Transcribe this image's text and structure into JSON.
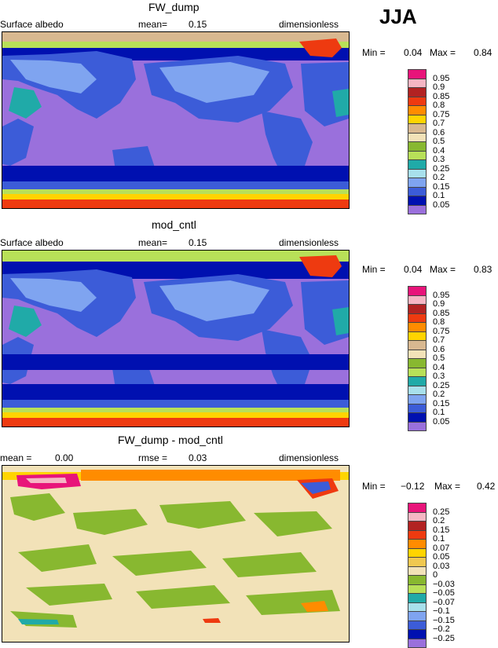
{
  "season": "JJA",
  "panels": [
    {
      "title": "FW_dump",
      "left_label": "Surface albedo",
      "mean_label": "mean=",
      "mean_value": "0.15",
      "units": "dimensionless",
      "min_label": "Min =",
      "min_value": "0.04",
      "max_label": "Max =",
      "max_value": "0.84",
      "colorbar": {
        "labels": [
          "0.95",
          "0.9",
          "0.85",
          "0.8",
          "0.75",
          "0.7",
          "0.6",
          "0.5",
          "0.4",
          "0.3",
          "0.25",
          "0.2",
          "0.15",
          "0.1",
          "0.05"
        ],
        "colors": [
          "#e8147a",
          "#f5b6c4",
          "#b22222",
          "#ee3a10",
          "#ff8c00",
          "#ffd400",
          "#d8b890",
          "#f2e2b8",
          "#88b830",
          "#b8e058",
          "#20aaa8",
          "#a8e0ec",
          "#7fa4f0",
          "#3c5cd8",
          "#0010b0",
          "#9a70dc"
        ]
      }
    },
    {
      "title": "mod_cntl",
      "left_label": "Surface albedo",
      "mean_label": "mean=",
      "mean_value": "0.15",
      "units": "dimensionless",
      "min_label": "Min =",
      "min_value": "0.04",
      "max_label": "Max =",
      "max_value": "0.83",
      "colorbar": {
        "labels": [
          "0.95",
          "0.9",
          "0.85",
          "0.8",
          "0.75",
          "0.7",
          "0.6",
          "0.5",
          "0.4",
          "0.3",
          "0.25",
          "0.2",
          "0.15",
          "0.1",
          "0.05"
        ],
        "colors": [
          "#e8147a",
          "#f5b6c4",
          "#b22222",
          "#ee3a10",
          "#ff8c00",
          "#ffd400",
          "#d8b890",
          "#f2e2b8",
          "#88b830",
          "#b8e058",
          "#20aaa8",
          "#a8e0ec",
          "#7fa4f0",
          "#3c5cd8",
          "#0010b0",
          "#9a70dc"
        ]
      }
    },
    {
      "title": "FW_dump - mod_cntl",
      "mean_label": "mean =",
      "mean_value": "0.00",
      "rmse_label": "rmse =",
      "rmse_value": "0.03",
      "units": "dimensionless",
      "min_label": "Min =",
      "min_value": "−0.12",
      "max_label": "Max =",
      "max_value": "0.42",
      "colorbar": {
        "labels": [
          "0.25",
          "0.2",
          "0.15",
          "0.1",
          "0.07",
          "0.05",
          "0.03",
          "0",
          "−0.03",
          "−0.05",
          "−0.07",
          "−0.1",
          "−0.15",
          "−0.2",
          "−0.25"
        ],
        "colors": [
          "#e8147a",
          "#f5b6c4",
          "#b22222",
          "#ee3a10",
          "#ff8c00",
          "#ffd400",
          "#f0c850",
          "#f2e2b8",
          "#88b830",
          "#b8e058",
          "#20aaa8",
          "#a8e0ec",
          "#7fa4f0",
          "#3c5cd8",
          "#0010b0",
          "#9a70dc"
        ]
      }
    }
  ]
}
